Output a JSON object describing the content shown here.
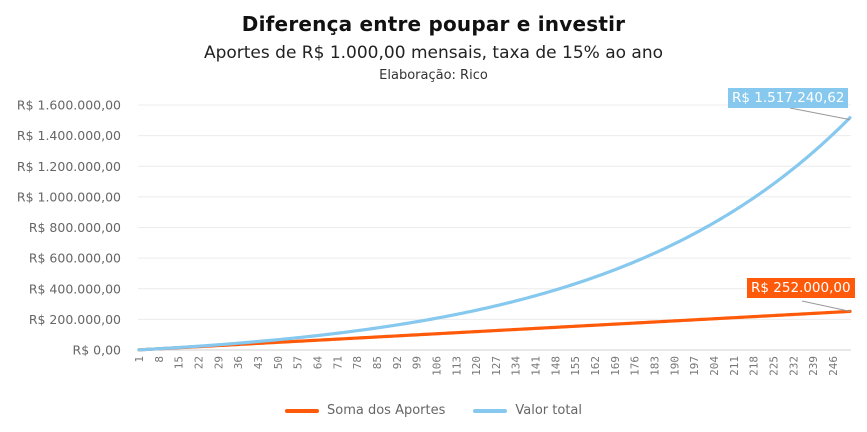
{
  "chart_data": {
    "type": "line",
    "title": "Diferença entre poupar e investir",
    "subtitle": "Aportes de R$ 1.000,00 mensais, taxa de 15% ao ano",
    "credit": "Elaboração: Rico",
    "xlabel": "",
    "ylabel": "",
    "x_range": [
      1,
      252
    ],
    "x_tick_step": 7,
    "x_ticks": [
      "1",
      "8",
      "15",
      "22",
      "29",
      "36",
      "43",
      "50",
      "57",
      "64",
      "71",
      "78",
      "85",
      "92",
      "99",
      "106",
      "113",
      "120",
      "127",
      "134",
      "141",
      "148",
      "155",
      "162",
      "169",
      "176",
      "183",
      "190",
      "197",
      "204",
      "211",
      "218",
      "225",
      "232",
      "239",
      "246"
    ],
    "ylim": [
      0,
      1600000
    ],
    "y_ticks": [
      "R$ 0,00",
      "R$ 200.000,00",
      "R$ 400.000,00",
      "R$ 600.000,00",
      "R$ 800.000,00",
      "R$ 1.000.000,00",
      "R$ 1.200.000,00",
      "R$ 1.400.000,00",
      "R$ 1.600.000,00"
    ],
    "y_tick_values": [
      0,
      200000,
      400000,
      600000,
      800000,
      1000000,
      1200000,
      1400000,
      1600000
    ],
    "grid": true,
    "legend_position": "bottom",
    "series": [
      {
        "name": "Soma dos Aportes",
        "color": "#FF5A0A",
        "monthly_contribution": 1000,
        "annual_rate": 0,
        "final_value": 252000,
        "final_label": "R$ 252.000,00"
      },
      {
        "name": "Valor total",
        "color": "#86C8EE",
        "monthly_contribution": 1000,
        "annual_rate": 0.15,
        "final_value": 1517240.62,
        "final_label": "R$ 1.517.240,62"
      }
    ]
  }
}
